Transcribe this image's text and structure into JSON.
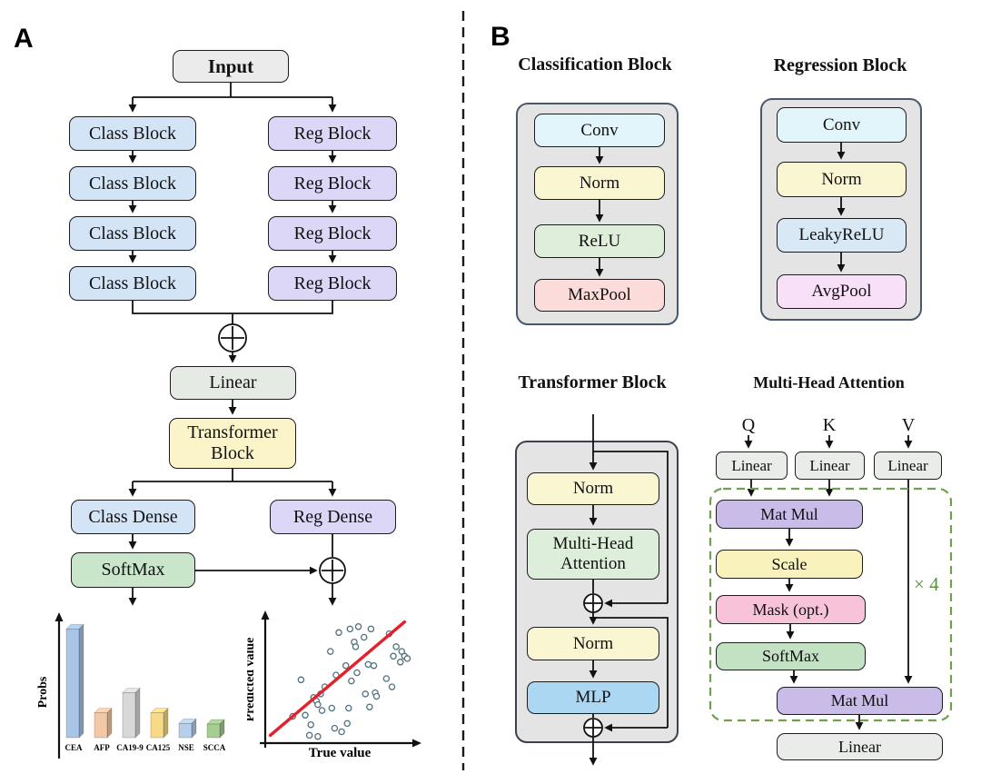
{
  "figure": {
    "panel_a_label": "A",
    "panel_b_label": "B"
  },
  "panelA": {
    "input_label": "Input",
    "class_blocks": [
      "Class Block",
      "Class Block",
      "Class Block",
      "Class Block"
    ],
    "reg_blocks": [
      "Reg Block",
      "Reg Block",
      "Reg Block",
      "Reg Block"
    ],
    "linear_label": "Linear",
    "transformer_label": "Transformer Block",
    "class_dense_label": "Class Dense",
    "reg_dense_label": "Reg Dense",
    "softmax_label": "SoftMax"
  },
  "panelB": {
    "classification": {
      "title": "Classification Block",
      "conv": "Conv",
      "norm": "Norm",
      "relu": "ReLU",
      "maxpool": "MaxPool"
    },
    "regression": {
      "title": "Regression Block",
      "conv": "Conv",
      "norm": "Norm",
      "leakyrelu": "LeakyReLU",
      "avgpool": "AvgPool"
    },
    "transformer": {
      "title": "Transformer Block",
      "norm1": "Norm",
      "mha": "Multi-Head Attention",
      "norm2": "Norm",
      "mlp": "MLP"
    },
    "mha": {
      "title": "Multi-Head Attention",
      "q": "Q",
      "k": "K",
      "v": "V",
      "linear_q": "Linear",
      "linear_k": "Linear",
      "linear_v": "Linear",
      "matmul1": "Mat Mul",
      "scale": "Scale",
      "mask": "Mask (opt.)",
      "softmax": "SoftMax",
      "matmul2": "Mat Mul",
      "repeat": "× 4",
      "linear_out": "Linear"
    }
  },
  "chart_data": [
    {
      "type": "bar",
      "title": "",
      "ylabel": "Probs",
      "xlabel": "",
      "categories": [
        "CEA",
        "AFP",
        "CA19-9",
        "CA125",
        "NSE",
        "SCCA"
      ],
      "values": [
        0.92,
        0.21,
        0.38,
        0.21,
        0.12,
        0.115
      ],
      "colors": [
        "#a9c6e8",
        "#f3c8a6",
        "#d8d8d8",
        "#f6da88",
        "#b7cfeb",
        "#a6cd92"
      ],
      "ylim": [
        0,
        1
      ],
      "grid": false,
      "legend": "none",
      "style": "3d-bars"
    },
    {
      "type": "scatter",
      "title": "",
      "xlabel": "True value",
      "ylabel": "Predicted value",
      "xlim": [
        0,
        1
      ],
      "ylim": [
        0,
        1
      ],
      "grid": false,
      "legend": "none",
      "point_color": "#50707e",
      "points": [
        [
          0.5,
          0.89
        ],
        [
          0.58,
          0.92
        ],
        [
          0.64,
          0.94
        ],
        [
          0.73,
          0.92
        ],
        [
          0.68,
          0.85
        ],
        [
          0.61,
          0.81
        ],
        [
          0.62,
          0.77
        ],
        [
          0.44,
          0.73
        ],
        [
          0.86,
          0.88
        ],
        [
          0.91,
          0.77
        ],
        [
          0.89,
          0.69
        ],
        [
          0.95,
          0.73
        ],
        [
          0.97,
          0.69
        ],
        [
          0.94,
          0.64
        ],
        [
          0.99,
          0.67
        ],
        [
          0.75,
          0.61
        ],
        [
          0.55,
          0.61
        ],
        [
          0.48,
          0.53
        ],
        [
          0.59,
          0.48
        ],
        [
          0.63,
          0.55
        ],
        [
          0.71,
          0.62
        ],
        [
          0.84,
          0.5
        ],
        [
          0.88,
          0.43
        ],
        [
          0.23,
          0.49
        ],
        [
          0.4,
          0.43
        ],
        [
          0.37,
          0.37
        ],
        [
          0.32,
          0.34
        ],
        [
          0.34,
          0.31
        ],
        [
          0.35,
          0.28
        ],
        [
          0.38,
          0.23
        ],
        [
          0.26,
          0.19
        ],
        [
          0.17,
          0.18
        ],
        [
          0.45,
          0.25
        ],
        [
          0.57,
          0.25
        ],
        [
          0.69,
          0.37
        ],
        [
          0.76,
          0.38
        ],
        [
          0.77,
          0.35
        ],
        [
          0.72,
          0.26
        ],
        [
          0.47,
          0.08
        ],
        [
          0.52,
          0.05
        ],
        [
          0.56,
          0.12
        ],
        [
          0.3,
          0.11
        ],
        [
          0.29,
          0.02
        ],
        [
          0.35,
          0.01
        ]
      ],
      "fit_line": {
        "x1": 0.01,
        "y1": 0.02,
        "x2": 0.97,
        "y2": 0.98,
        "color": "#e5202a"
      }
    }
  ],
  "colors": {
    "class_fill": "#d4e4f7",
    "reg_fill": "#dcd6f7",
    "input_fill": "#ebebeb",
    "linear_fill": "#e5eae4",
    "transformer_fill": "#fbf4c8",
    "softmax_fill": "#c9e6cb",
    "conv_fill": "#e2f5fa",
    "norm_fill": "#fbf6d2",
    "relu_fill": "#dfeeda",
    "maxpool_fill": "#fcdcdb",
    "leakyrelu_fill": "#d9e8f5",
    "avgpool_fill": "#f8e0f8",
    "mha_fill": "#ddefdb",
    "mlp_fill": "#abd7f2",
    "matmul_fill": "#c9bce8",
    "scale_fill": "#f9f2bc",
    "mask_fill": "#f8c3d8",
    "softmax_mha_fill": "#c3e2c4",
    "container_gray": "#e4e4e4",
    "dashed_green": "#70a04e",
    "fit_line_red": "#e5202a"
  }
}
